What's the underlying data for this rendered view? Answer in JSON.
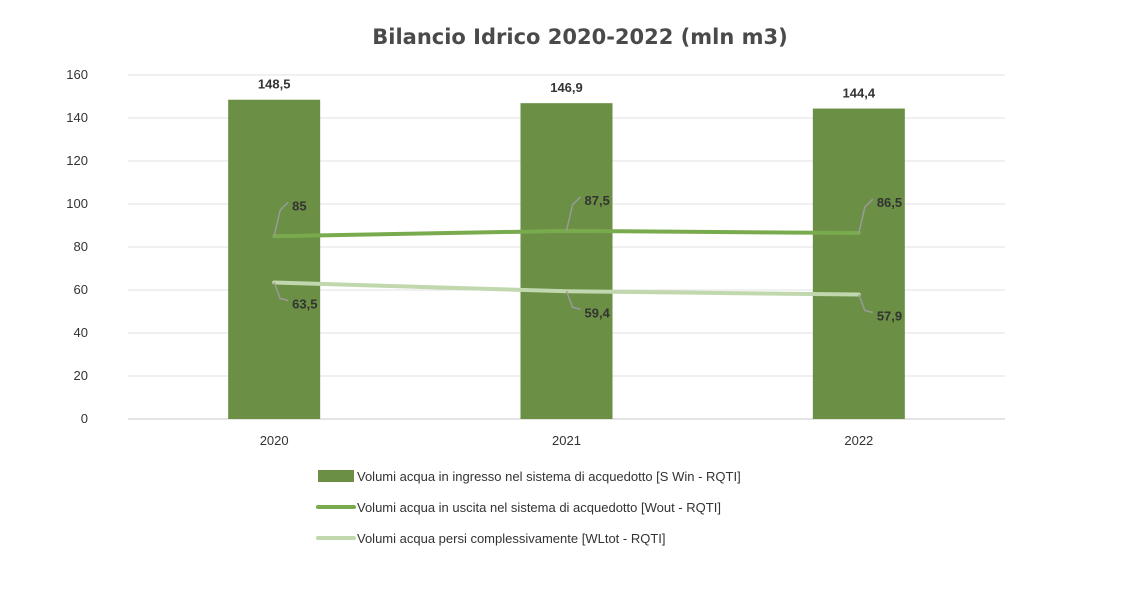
{
  "chart_data": {
    "type": "bar",
    "title": "Bilancio Idrico 2020-2022 (mln m3)",
    "categories": [
      "2020",
      "2021",
      "2022"
    ],
    "ylim": [
      0,
      160
    ],
    "yticks": [
      0,
      20,
      40,
      60,
      80,
      100,
      120,
      140,
      160
    ],
    "grid": true,
    "legend_position": "bottom",
    "series": [
      {
        "name": "Volumi acqua in ingresso nel sistema di acquedotto [S Win - RQTI]",
        "kind": "bar",
        "color": "#6a8f45",
        "values": [
          148.5,
          146.9,
          144.4
        ],
        "labels": [
          "148,5",
          "146,9",
          "144,4"
        ]
      },
      {
        "name": "Volumi acqua in uscita nel sistema di acquedotto [Wout - RQTI]",
        "kind": "line",
        "color": "#7aaa4e",
        "values": [
          85,
          87.5,
          86.5
        ],
        "labels": [
          "85",
          "87,5",
          "86,5"
        ]
      },
      {
        "name": "Volumi acqua persi complessivamente [WLtot - RQTI]",
        "kind": "line",
        "color": "#c1d7ad",
        "values": [
          63.5,
          59.4,
          57.9
        ],
        "labels": [
          "63,5",
          "59,4",
          "57,9"
        ]
      }
    ]
  }
}
